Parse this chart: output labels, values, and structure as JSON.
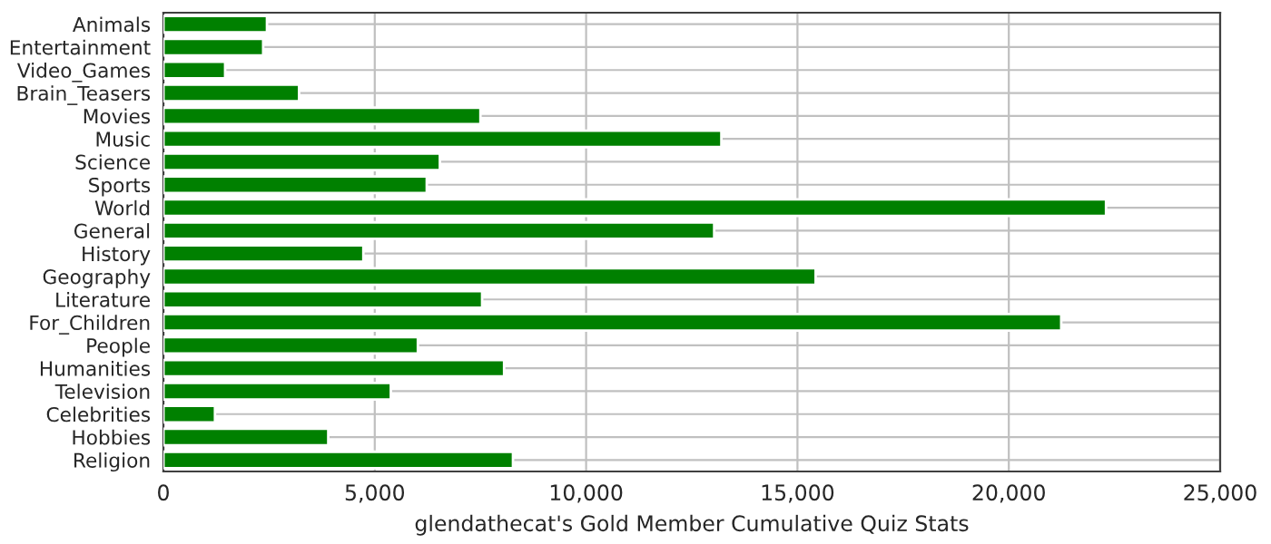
{
  "chart_data": {
    "type": "bar",
    "orientation": "horizontal",
    "xlabel": "glendathecat's Gold Member Cumulative Quiz Stats",
    "categories": [
      "Animals",
      "Entertainment",
      "Video_Games",
      "Brain_Teasers",
      "Movies",
      "Music",
      "Science",
      "Sports",
      "World",
      "General",
      "History",
      "Geography",
      "Literature",
      "For_Children",
      "People",
      "Humanities",
      "Television",
      "Celebrities",
      "Hobbies",
      "Religion"
    ],
    "values": [
      2450,
      2360,
      1460,
      3210,
      7500,
      13200,
      6540,
      6230,
      22300,
      13030,
      4730,
      15430,
      7540,
      21240,
      6020,
      8060,
      5380,
      1220,
      3900,
      8270
    ],
    "color": "#008000",
    "xlim": [
      0,
      25000
    ],
    "xticks": [
      {
        "value": 0,
        "label": "0"
      },
      {
        "value": 5000,
        "label": "5,000"
      },
      {
        "value": 10000,
        "label": "10,000"
      },
      {
        "value": 15000,
        "label": "15,000"
      },
      {
        "value": 20000,
        "label": "20,000"
      },
      {
        "value": 25000,
        "label": "25,000"
      }
    ],
    "grid": true
  }
}
